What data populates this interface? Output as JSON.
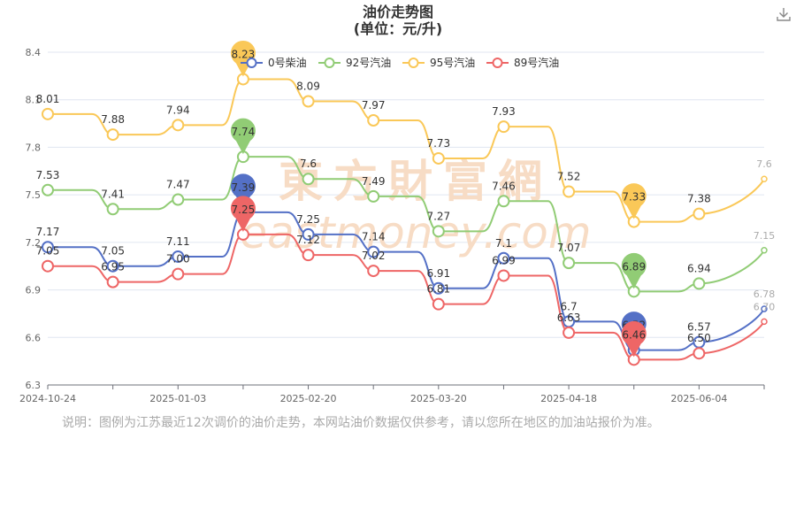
{
  "chart_data": {
    "type": "line",
    "title": "油价走势图",
    "subtitle": "(单位：元/升)",
    "x_tick_labels": [
      "2024-10-24",
      "2025-01-03",
      "2025-02-20",
      "2025-03-20",
      "2025-04-18",
      "2025-06-04"
    ],
    "y_tick_labels": [
      "6.3",
      "6.6",
      "6.9",
      "7.2",
      "7.5",
      "7.8",
      "8.1",
      "8.4"
    ],
    "ylim": [
      6.3,
      8.4
    ],
    "grid": true,
    "legend_position": "top-center",
    "series": [
      {
        "name": "0号柴油",
        "color": "#5470c6",
        "values": [
          7.17,
          7.05,
          7.11,
          7.39,
          7.25,
          7.14,
          6.91,
          7.1,
          6.7,
          6.52,
          6.57,
          6.78
        ],
        "labels": [
          "7.17",
          "7.05",
          "7.11",
          "",
          "7.25",
          "7.14",
          "6.91",
          "7.1",
          "6.7",
          "",
          "6.57",
          "6.78"
        ]
      },
      {
        "name": "92号汽油",
        "color": "#91cc75",
        "values": [
          7.53,
          7.41,
          7.47,
          7.74,
          7.6,
          7.49,
          7.27,
          7.46,
          7.07,
          6.89,
          6.94,
          7.15
        ],
        "labels": [
          "7.53",
          "7.41",
          "7.47",
          "",
          "7.6",
          "7.49",
          "7.27",
          "7.46",
          "7.07",
          "",
          "6.94",
          "7.15"
        ]
      },
      {
        "name": "95号汽油",
        "color": "#fac858",
        "values": [
          8.01,
          7.88,
          7.94,
          8.23,
          8.09,
          7.97,
          7.73,
          7.93,
          7.52,
          7.33,
          7.38,
          7.6
        ],
        "labels": [
          "8.01",
          "7.88",
          "7.94",
          "",
          "8.09",
          "7.97",
          "7.73",
          "7.93",
          "7.52",
          "",
          "7.38",
          "7.6"
        ]
      },
      {
        "name": "89号汽油",
        "color": "#ee6666",
        "values": [
          7.05,
          6.95,
          7.0,
          7.25,
          7.12,
          7.02,
          6.81,
          6.99,
          6.63,
          6.46,
          6.5,
          6.7
        ],
        "labels": [
          "7.05",
          "6.95",
          "7.00",
          "",
          "7.12",
          "7.02",
          "6.81",
          "6.99",
          "6.63",
          "",
          "6.50",
          "6.70"
        ]
      }
    ],
    "markers": [
      {
        "series": 0,
        "point": 3,
        "label": "7.39"
      },
      {
        "series": 1,
        "point": 3,
        "label": "7.74"
      },
      {
        "series": 2,
        "point": 3,
        "label": "8.23"
      },
      {
        "series": 3,
        "point": 3,
        "label": "7.25"
      },
      {
        "series": 0,
        "point": 9,
        "label": "6.52"
      },
      {
        "series": 1,
        "point": 9,
        "label": "6.89"
      },
      {
        "series": 2,
        "point": 9,
        "label": "7.33"
      },
      {
        "series": 3,
        "point": 9,
        "label": "6.46"
      }
    ]
  },
  "watermark": {
    "cn": "東方財富網",
    "en": "eastmoney.com"
  },
  "note": "说明：图例为江苏最近12次调价的油价走势，本网站油价数据仅供参考，请以您所在地区的加油站报价为准。",
  "toolbar": {
    "download_icon": "download-icon"
  }
}
